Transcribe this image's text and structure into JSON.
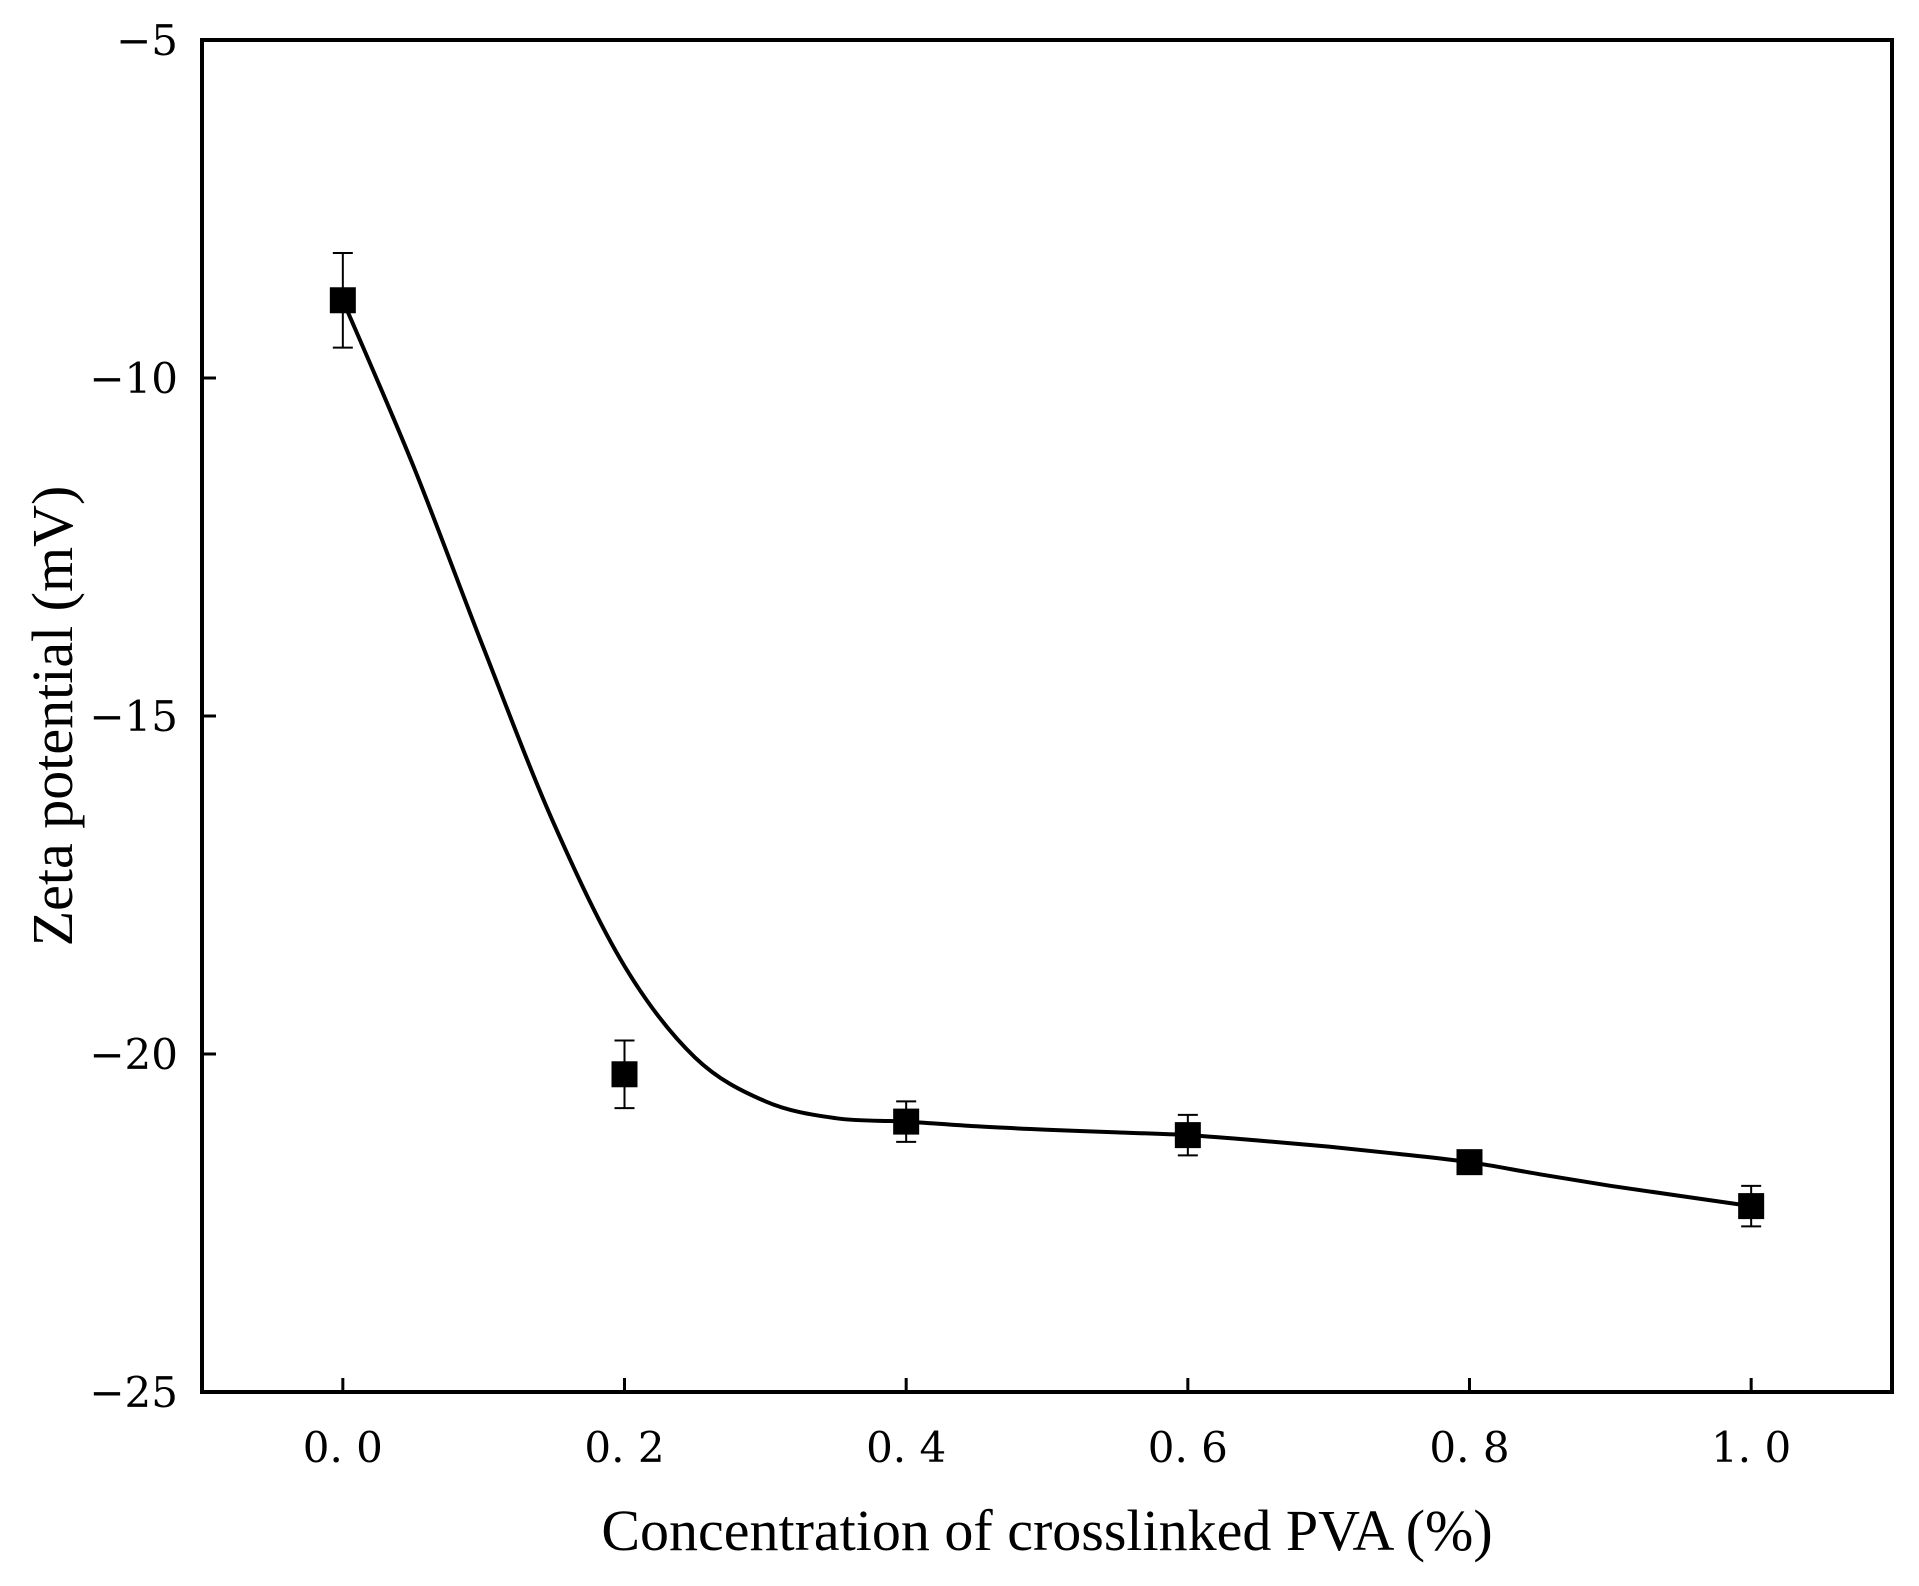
{
  "chart_data": {
    "type": "scatter",
    "title": "",
    "xlabel": "Concentration of crosslinked PVA (%)",
    "ylabel": "Zeta potential (mV)",
    "xlim": [
      -0.1,
      1.1
    ],
    "ylim": [
      -25,
      -5
    ],
    "x_ticks": [
      0.0,
      0.2,
      0.4,
      0.6,
      0.8,
      1.0
    ],
    "x_tick_labels": [
      "0. 0",
      "0. 2",
      "0. 4",
      "0. 6",
      "0. 8",
      "1. 0"
    ],
    "y_ticks": [
      -5,
      -10,
      -15,
      -20,
      -25
    ],
    "y_tick_labels": [
      "−5",
      "−10",
      "−15",
      "−20",
      "−25"
    ],
    "grid": false,
    "series": [
      {
        "name": "Zeta potential",
        "marker": "square",
        "x": [
          0.0,
          0.2,
          0.4,
          0.6,
          0.8,
          1.0
        ],
        "y": [
          -8.85,
          -20.3,
          -21.0,
          -21.2,
          -21.6,
          -22.25
        ],
        "error": [
          0.7,
          0.5,
          0.3,
          0.3,
          0.12,
          0.3
        ]
      }
    ],
    "fit_curve": {
      "x": [
        0.0,
        0.05,
        0.1,
        0.15,
        0.2,
        0.25,
        0.3,
        0.35,
        0.4,
        0.45,
        0.5,
        0.55,
        0.6,
        0.65,
        0.7,
        0.75,
        0.8,
        0.85,
        0.9,
        0.95,
        1.0
      ],
      "y": [
        -8.85,
        -11.3,
        -14.0,
        -16.6,
        -18.7,
        -20.05,
        -20.7,
        -20.95,
        -21.0,
        -21.07,
        -21.12,
        -21.16,
        -21.2,
        -21.28,
        -21.37,
        -21.48,
        -21.6,
        -21.78,
        -21.95,
        -22.1,
        -22.25
      ]
    },
    "colors": {
      "marker": "#000000",
      "line": "#000000",
      "axis": "#000000",
      "background": "#ffffff"
    }
  }
}
